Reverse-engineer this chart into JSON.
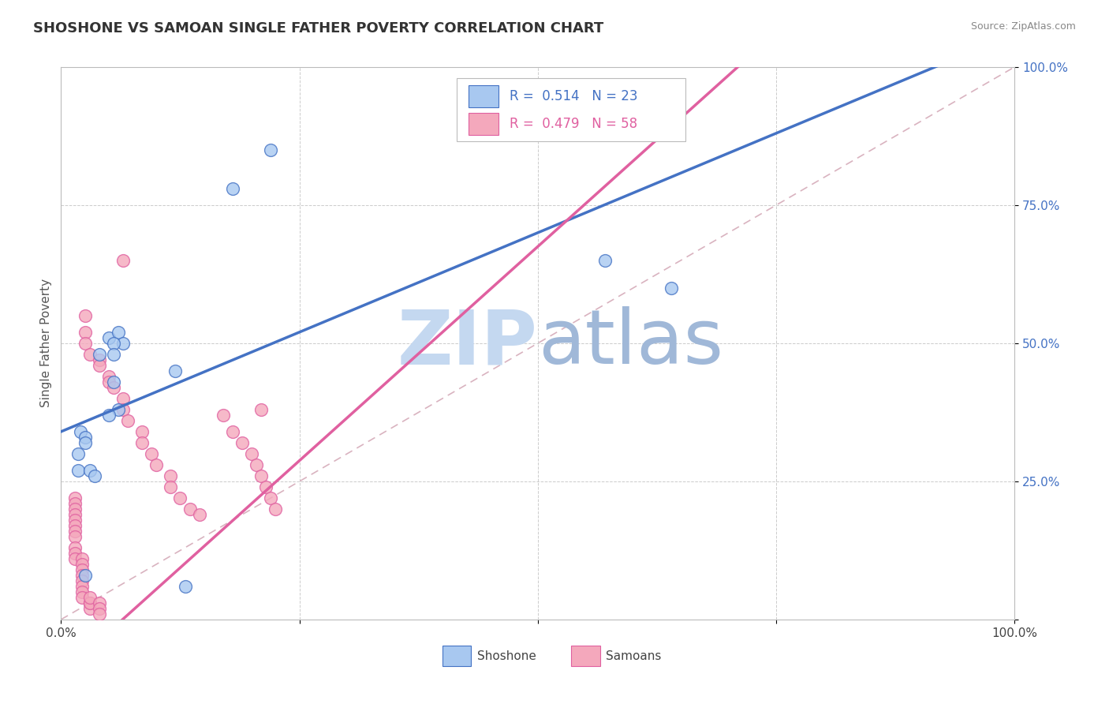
{
  "title": "SHOSHONE VS SAMOAN SINGLE FATHER POVERTY CORRELATION CHART",
  "source": "Source: ZipAtlas.com",
  "ylabel": "Single Father Poverty",
  "xlim": [
    0,
    1
  ],
  "ylim": [
    0,
    1
  ],
  "shoshone_color": "#A8C8F0",
  "samoan_color": "#F4A8BC",
  "shoshone_line_color": "#4472C4",
  "samoan_line_color": "#E060A0",
  "diagonal_color": "#D0A0B0",
  "legend_shoshone_R": "0.514",
  "legend_shoshone_N": "23",
  "legend_samoan_R": "0.479",
  "legend_samoan_N": "58",
  "watermark_zip_color": "#C4D8F0",
  "watermark_atlas_color": "#A0B8D8",
  "background_color": "#FFFFFF",
  "grid_color": "#CCCCCC",
  "shoshone_line_slope": 0.72,
  "shoshone_line_intercept": 0.34,
  "samoan_line_slope": 1.55,
  "samoan_line_intercept": -0.1,
  "shoshone_x": [
    0.05,
    0.06,
    0.065,
    0.04,
    0.055,
    0.055,
    0.055,
    0.06,
    0.05,
    0.02,
    0.025,
    0.025,
    0.018,
    0.018,
    0.03,
    0.035,
    0.025,
    0.12,
    0.22,
    0.18,
    0.57,
    0.64,
    0.13
  ],
  "shoshone_y": [
    0.51,
    0.52,
    0.5,
    0.48,
    0.5,
    0.48,
    0.43,
    0.38,
    0.37,
    0.34,
    0.33,
    0.32,
    0.3,
    0.27,
    0.27,
    0.26,
    0.08,
    0.45,
    0.85,
    0.78,
    0.65,
    0.6,
    0.06
  ],
  "samoan_x": [
    0.065,
    0.21,
    0.025,
    0.025,
    0.025,
    0.03,
    0.04,
    0.04,
    0.05,
    0.05,
    0.055,
    0.065,
    0.065,
    0.07,
    0.085,
    0.085,
    0.095,
    0.1,
    0.115,
    0.115,
    0.125,
    0.135,
    0.145,
    0.015,
    0.015,
    0.015,
    0.015,
    0.015,
    0.015,
    0.015,
    0.015,
    0.015,
    0.015,
    0.015,
    0.022,
    0.022,
    0.022,
    0.022,
    0.022,
    0.022,
    0.022,
    0.022,
    0.03,
    0.03,
    0.03,
    0.03,
    0.04,
    0.04,
    0.04,
    0.17,
    0.18,
    0.19,
    0.2,
    0.205,
    0.21,
    0.215,
    0.22,
    0.225
  ],
  "samoan_y": [
    0.65,
    0.38,
    0.55,
    0.52,
    0.5,
    0.48,
    0.47,
    0.46,
    0.44,
    0.43,
    0.42,
    0.4,
    0.38,
    0.36,
    0.34,
    0.32,
    0.3,
    0.28,
    0.26,
    0.24,
    0.22,
    0.2,
    0.19,
    0.22,
    0.21,
    0.2,
    0.19,
    0.18,
    0.17,
    0.16,
    0.15,
    0.13,
    0.12,
    0.11,
    0.11,
    0.1,
    0.09,
    0.08,
    0.07,
    0.06,
    0.05,
    0.04,
    0.03,
    0.02,
    0.03,
    0.04,
    0.03,
    0.02,
    0.01,
    0.37,
    0.34,
    0.32,
    0.3,
    0.28,
    0.26,
    0.24,
    0.22,
    0.2
  ]
}
